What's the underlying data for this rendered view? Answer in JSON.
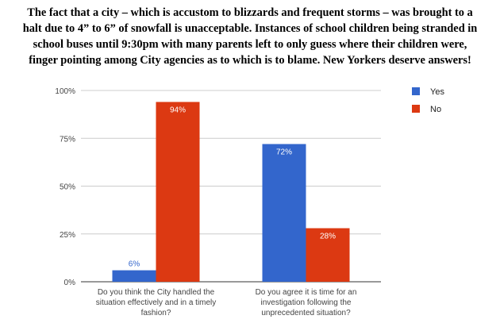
{
  "title_lines": [
    "The fact that a city – which is accustom to blizzards and frequent storms – was brought to a",
    "halt due to 4” to 6” of snowfall is unacceptable. Instances of school children being stranded in",
    "school buses until 9:30pm with many parents left to only guess where their children were,",
    "finger pointing among City agencies as to which is to blame. New Yorkers deserve answers!"
  ],
  "chart_data": {
    "type": "bar",
    "categories": [
      "Do you think the City handled the situation effectively and in a timely fashion?",
      "Do you agree it is time for an investigation following the unprecedented situation?"
    ],
    "category_lines": [
      [
        "Do you think the City handled the",
        "situation effectively and in a timely",
        "fashion?"
      ],
      [
        "Do you agree it is time for an",
        "investigation following the",
        "unprecedented situation?"
      ]
    ],
    "series": [
      {
        "name": "Yes",
        "values": [
          6,
          72
        ],
        "labels": [
          "6%",
          "72%"
        ],
        "color": "#3366cc"
      },
      {
        "name": "No",
        "values": [
          94,
          28
        ],
        "labels": [
          "94%",
          "28%"
        ],
        "color": "#dc3912"
      }
    ],
    "ylim": [
      0,
      100
    ],
    "yticks": [
      0,
      25,
      50,
      75,
      100
    ],
    "ytick_labels": [
      "0%",
      "25%",
      "50%",
      "75%",
      "100%"
    ],
    "grid": true,
    "legend_position": "right",
    "xlabel": "",
    "ylabel": ""
  }
}
